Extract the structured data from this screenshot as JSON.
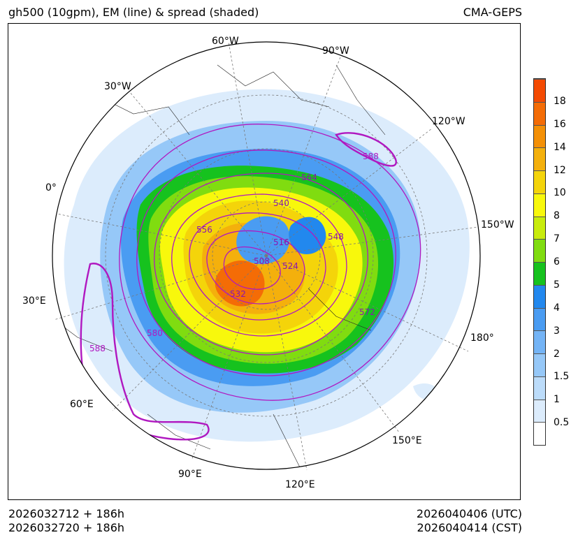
{
  "header": {
    "title": "gh500 (10gpm), EM (line) & spread (shaded)",
    "source": "CMA-GEPS"
  },
  "footer": {
    "init_utc": "2026032712 + 186h",
    "init_cst": "2026032720 + 186h",
    "valid_utc": "2026040406 (UTC)",
    "valid_cst": "2026040414 (CST)"
  },
  "longitude_labels": [
    "60°W",
    "90°W",
    "30°W",
    "120°W",
    "0°",
    "150°W",
    "30°E",
    "180°",
    "60°E",
    "150°E",
    "90°E",
    "120°E"
  ],
  "contour_labels": [
    "564",
    "588",
    "540",
    "556",
    "516",
    "548",
    "508",
    "524",
    "532",
    "572",
    "580",
    "588"
  ],
  "colorbar": {
    "levels": [
      "0.5",
      "1",
      "1.5",
      "2",
      "3",
      "4",
      "5",
      "6",
      "7",
      "8",
      "10",
      "12",
      "14",
      "16",
      "18"
    ],
    "colors": [
      "#ffffff",
      "#dcecfc",
      "#bcdcfa",
      "#96c8f8",
      "#74b4f6",
      "#4a9cf2",
      "#2288ee",
      "#16c21e",
      "#80dc10",
      "#c8ec0c",
      "#f8f80c",
      "#f4d40a",
      "#f4b00c",
      "#f49006",
      "#f46c06",
      "#f44a02"
    ]
  }
}
